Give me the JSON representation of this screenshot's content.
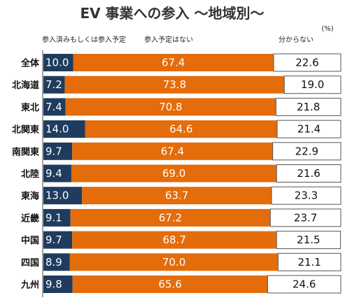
{
  "chart_data": {
    "type": "bar",
    "stacked": true,
    "orientation": "horizontal",
    "title": "EV 事業への参入 ～地域別～",
    "unit_label": "(%)",
    "xlim": [
      0,
      100
    ],
    "grid": false,
    "legend_position": "top",
    "categories": [
      "全体",
      "北海道",
      "東北",
      "北関東",
      "南関東",
      "北陸",
      "東海",
      "近畿",
      "中国",
      "四国",
      "九州"
    ],
    "series": [
      {
        "name": "参入済みもしくは参入予定",
        "color": "#1f3c5e",
        "values": [
          10.0,
          7.2,
          7.4,
          14.0,
          9.7,
          9.4,
          13.0,
          9.1,
          9.7,
          8.9,
          9.8
        ],
        "labels": [
          "10.0",
          "7.2",
          "7.4",
          "14.0",
          "9.7",
          "9.4",
          "13.0",
          "9.1",
          "9.7",
          "8.9",
          "9.8"
        ]
      },
      {
        "name": "参入予定はない",
        "color": "#e46c0a",
        "values": [
          67.4,
          73.8,
          70.8,
          64.6,
          67.4,
          69.0,
          63.7,
          67.2,
          68.7,
          70.0,
          65.6
        ],
        "labels": [
          "67.4",
          "73.8",
          "70.8",
          "64.6",
          "67.4",
          "69.0",
          "63.7",
          "67.2",
          "68.7",
          "70.0",
          "65.6"
        ]
      },
      {
        "name": "分からない",
        "color": "#ffffff",
        "values": [
          22.6,
          19.0,
          21.8,
          21.4,
          22.9,
          21.6,
          23.3,
          23.7,
          21.5,
          21.1,
          24.6
        ],
        "labels": [
          "22.6",
          "19.0",
          "21.8",
          "21.4",
          "22.9",
          "21.6",
          "23.3",
          "23.7",
          "21.5",
          "21.1",
          "24.6"
        ]
      }
    ]
  }
}
